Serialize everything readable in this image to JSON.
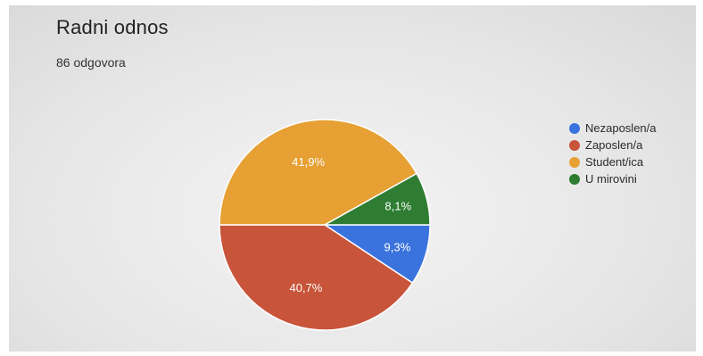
{
  "chart_data": {
    "type": "pie",
    "title": "Radni odnos",
    "subtitle": "86 odgovora",
    "legend_position": "right",
    "slices": [
      {
        "label": "Nezaposlen/a",
        "value": 9.3,
        "display": "9,3%",
        "color": "#3a73dd"
      },
      {
        "label": "Zaposlen/a",
        "value": 40.7,
        "display": "40,7%",
        "color": "#c8543a"
      },
      {
        "label": "Student/ica",
        "value": 41.9,
        "display": "41,9%",
        "color": "#e6a033"
      },
      {
        "label": "U mirovini",
        "value": 8.1,
        "display": "8,1%",
        "color": "#2e7d32"
      }
    ]
  }
}
